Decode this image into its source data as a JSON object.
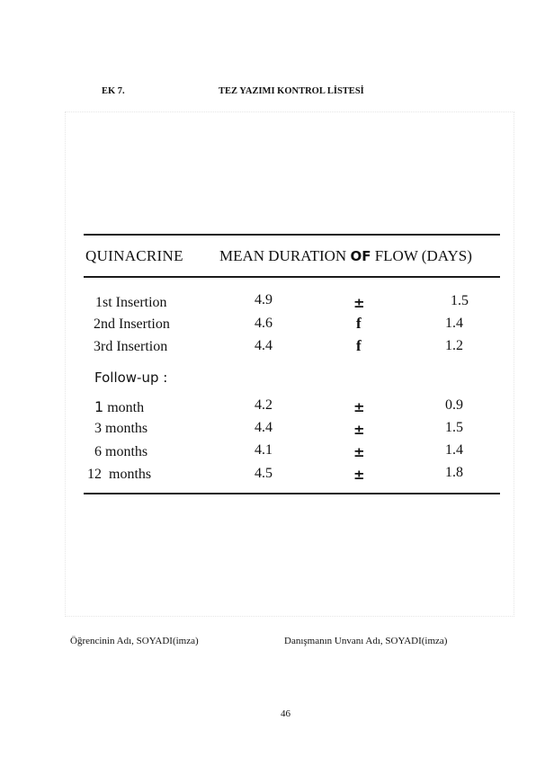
{
  "header": {
    "left": "EK 7.",
    "title": "TEZ YAZIMI KONTROL LİSTESİ"
  },
  "table": {
    "col_quinacrine": "QUINACRINE",
    "col_mean_a": "MEAN DURATION",
    "col_of": "OF",
    "col_mean_b": "FLOW (DAYS)",
    "rows": [
      {
        "label": "1st Insertion",
        "mean": "4.9",
        "sign": "±",
        "sd": "1.5"
      },
      {
        "label": "2nd Insertion",
        "mean": "4.6",
        "sign": "f",
        "sd": "1.4"
      },
      {
        "label": "3rd Insertion",
        "mean": "4.4",
        "sign": "f",
        "sd": "1.2"
      }
    ],
    "followup_label": "Follow-up :",
    "followup_rows": [
      {
        "label_num": "1",
        "label_unit": "month",
        "mean": "4.2",
        "sign": "±",
        "sd": "0.9"
      },
      {
        "label_num": "3",
        "label_unit": "months",
        "mean": "4.4",
        "sign": "±",
        "sd": "1.5"
      },
      {
        "label_num": "6",
        "label_unit": "months",
        "mean": "4.1",
        "sign": "±",
        "sd": "1.4"
      },
      {
        "label_num": "12",
        "label_unit": "months",
        "mean": "4.5",
        "sign": "±",
        "sd": "1.8"
      }
    ]
  },
  "footer": {
    "student": "Öğrencinin Adı, SOYADI(imza)",
    "advisor": "Danışmanın Unvanı Adı, SOYADI(imza)",
    "page_number": "46"
  }
}
